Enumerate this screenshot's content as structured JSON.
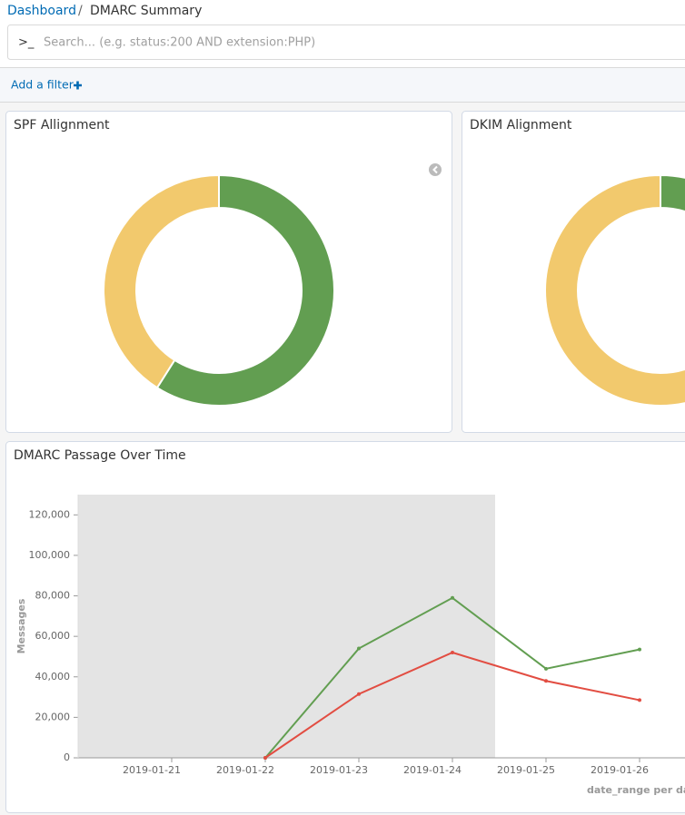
{
  "breadcrumb": {
    "parent": "Dashboard",
    "separator": "/",
    "current": "DMARC Summary"
  },
  "search": {
    "prompt": ">_",
    "placeholder": "Search... (e.g. status:200 AND extension:PHP)"
  },
  "filter": {
    "add_label": "Add a filter"
  },
  "chart_data": [
    {
      "type": "pie",
      "title": "SPF Allignment",
      "donut": true,
      "values": [
        59,
        41
      ],
      "colors": [
        "#629e51",
        "#f2c96d"
      ]
    },
    {
      "type": "pie",
      "title": "DKIM Alignment",
      "donut": true,
      "values": [
        25,
        75
      ],
      "colors": [
        "#629e51",
        "#f2c96d"
      ]
    },
    {
      "type": "line",
      "title": "DMARC Passage Over Time",
      "y_label": "Messages",
      "x_label": "date_range per day",
      "categories": [
        "2019-01-21",
        "2019-01-22",
        "2019-01-23",
        "2019-01-24",
        "2019-01-25",
        "2019-01-26"
      ],
      "series": [
        {
          "color": "#629e51",
          "values": [
            null,
            0,
            54000,
            79000,
            44000,
            53500
          ]
        },
        {
          "color": "#e24d42",
          "values": [
            null,
            0,
            31500,
            52000,
            38000,
            28500
          ]
        }
      ],
      "ylim": [
        0,
        130000
      ],
      "yticks": [
        0,
        {
          "value": 20000,
          "label": "20,000"
        },
        {
          "value": 40000,
          "label": "40,000"
        },
        {
          "value": 60000,
          "label": "60,000"
        },
        {
          "value": 80000,
          "label": "80,000"
        },
        {
          "value": 100000,
          "label": "100,000"
        },
        {
          "value": 120000,
          "label": "120,000"
        }
      ]
    }
  ]
}
